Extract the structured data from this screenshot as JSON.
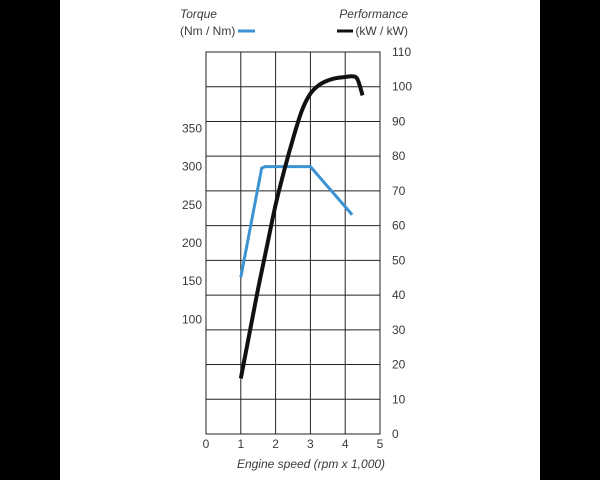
{
  "chart_data": {
    "type": "line",
    "xlabel": "Engine speed (rpm x 1,000)",
    "x_ticks": [
      "0",
      "1",
      "2",
      "3",
      "4",
      "5"
    ],
    "xlim": [
      0,
      5
    ],
    "left_axis": {
      "title": "Torque",
      "unit": "(Nm / Nm)",
      "ticks": [
        "100",
        "150",
        "200",
        "250",
        "300",
        "350"
      ],
      "ylim": [
        -50,
        450
      ]
    },
    "right_axis": {
      "title": "Performance",
      "unit": "(kW / kW)",
      "ticks": [
        "0",
        "10",
        "20",
        "30",
        "40",
        "50",
        "60",
        "70",
        "80",
        "90",
        "100",
        "110"
      ],
      "ylim": [
        0,
        110
      ]
    },
    "series": [
      {
        "name": "Torque",
        "axis": "left",
        "color": "#3b93d3",
        "x": [
          1.0,
          1.6,
          1.7,
          3.0,
          4.2
        ],
        "values": [
          155,
          298,
          300,
          300,
          237
        ]
      },
      {
        "name": "Performance",
        "axis": "right",
        "color": "#111111",
        "x": [
          1.0,
          1.25,
          1.5,
          1.75,
          2.0,
          2.25,
          2.5,
          2.75,
          3.0,
          3.25,
          3.5,
          3.75,
          4.0,
          4.2,
          4.35,
          4.5
        ],
        "values": [
          16,
          29,
          42,
          54,
          66,
          76,
          85,
          93,
          98,
          100.5,
          101.8,
          102.5,
          102.8,
          103,
          102.2,
          97.5
        ]
      }
    ],
    "grid": true
  }
}
